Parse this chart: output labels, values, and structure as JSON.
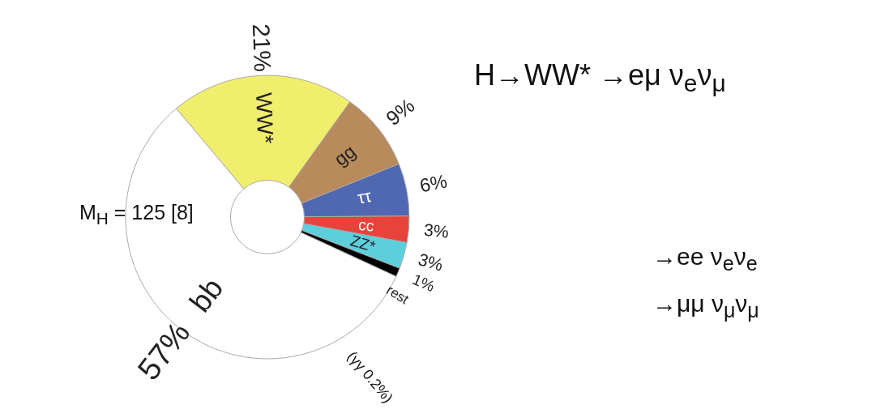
{
  "chart_data": {
    "type": "donut",
    "categories": [
      "WW*",
      "gg",
      "ττ",
      "cc",
      "ZZ*",
      "rest",
      "bb"
    ],
    "values": [
      21,
      9,
      6,
      3,
      3,
      1,
      57
    ],
    "colors": [
      "#f0ee6c",
      "#b88a5c",
      "#5068b2",
      "#e8433a",
      "#5ccfdc",
      "#000000",
      "#ffffff"
    ],
    "value_labels": [
      "21%",
      "9%",
      "6%",
      "3%",
      "3%",
      "1%",
      "57%"
    ],
    "annotations": [
      "H→WW* →eμ ν$_{e}$ν$_{μ}$",
      "→ee ν$_{e}$ν$_{e}$",
      "→μμ ν$_{μ}$ν$_{μ}$",
      "M$_{H}$ = 125 [8]",
      "(γγ 0.2%)"
    ]
  }
}
